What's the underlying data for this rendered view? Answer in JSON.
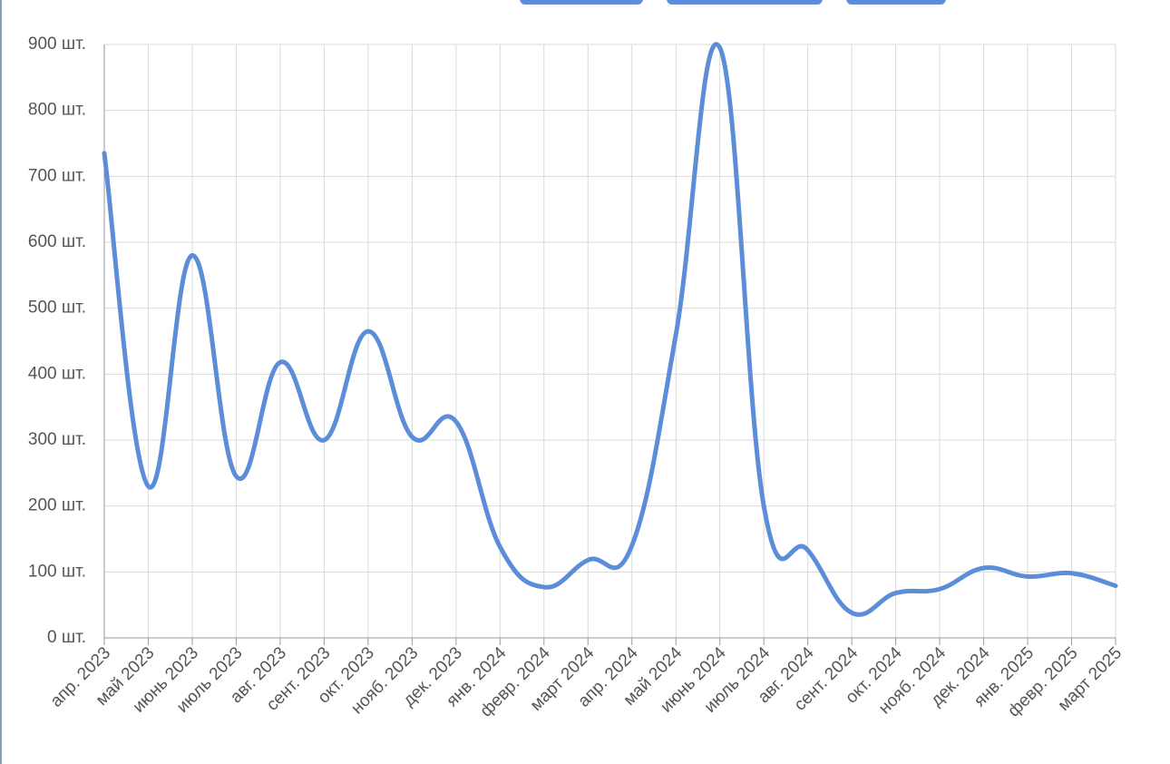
{
  "chart_data": {
    "type": "line",
    "categories": [
      "апр. 2023",
      "май 2023",
      "июнь 2023",
      "июль 2023",
      "авг. 2023",
      "сент. 2023",
      "окт. 2023",
      "нояб. 2023",
      "дек. 2023",
      "янв. 2024",
      "февр. 2024",
      "март 2024",
      "апр. 2024",
      "май 2024",
      "июнь 2024",
      "июль 2024",
      "авг. 2024",
      "сент. 2024",
      "окт. 2024",
      "нояб. 2024",
      "дек. 2024",
      "янв. 2025",
      "февр. 2025",
      "март 2025"
    ],
    "values": [
      735,
      230,
      580,
      245,
      418,
      300,
      465,
      305,
      328,
      138,
      77,
      118,
      140,
      460,
      895,
      200,
      133,
      38,
      68,
      74,
      106,
      93,
      98,
      79
    ],
    "color": "#5b8dd9",
    "ylim": [
      0,
      900
    ],
    "yticks": [
      {
        "value": 0,
        "label": "0 шт."
      },
      {
        "value": 100,
        "label": "100 шт."
      },
      {
        "value": 200,
        "label": "200 шт."
      },
      {
        "value": 300,
        "label": "300 шт."
      },
      {
        "value": 400,
        "label": "400 шт."
      },
      {
        "value": 500,
        "label": "500 шт."
      },
      {
        "value": 600,
        "label": "600 шт."
      },
      {
        "value": 700,
        "label": "700 шт."
      },
      {
        "value": 800,
        "label": "800 шт."
      },
      {
        "value": 900,
        "label": "900 шт."
      }
    ],
    "grid": true
  }
}
